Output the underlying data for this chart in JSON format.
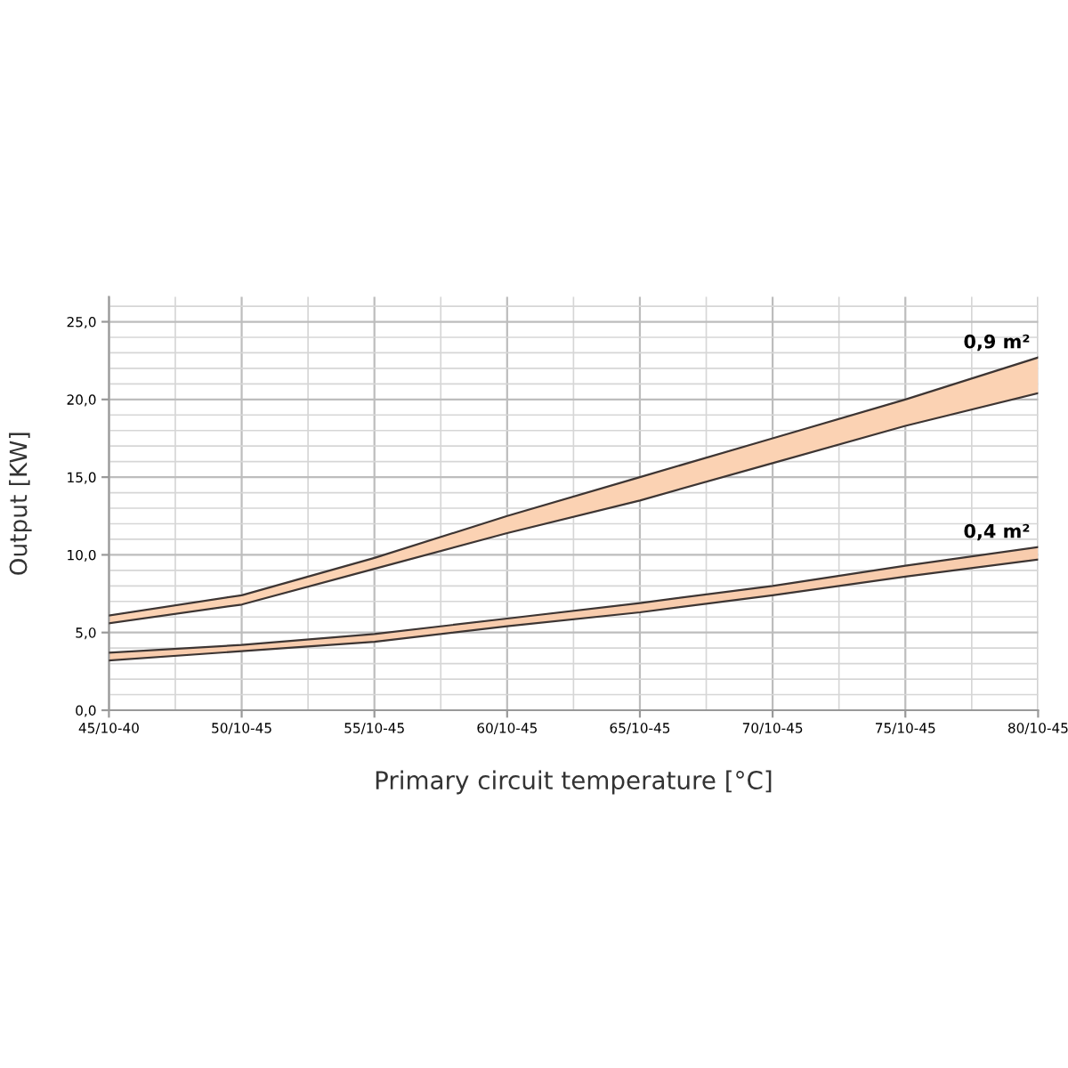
{
  "chart_data": {
    "type": "line",
    "xlabel": "Primary circuit temperature [°C]",
    "ylabel": "Output [KW]",
    "categories": [
      "45/10-40",
      "50/10-45",
      "55/10-45",
      "60/10-45",
      "65/10-45",
      "70/10-45",
      "75/10-45",
      "80/10-45"
    ],
    "series": [
      {
        "name": "0,9 m²",
        "color": "#3d3533",
        "values": [
          6.1,
          7.4,
          9.8,
          12.5,
          15.0,
          17.5,
          20.0,
          22.7
        ],
        "lower": [
          5.6,
          6.8,
          9.1,
          11.4,
          13.5,
          15.9,
          18.3,
          20.4
        ],
        "upper": [
          6.1,
          7.4,
          9.8,
          12.5,
          15.0,
          17.5,
          20.0,
          22.7
        ]
      },
      {
        "color": "#3d3533",
        "values": [
          5.6,
          6.8,
          9.1,
          11.4,
          13.5,
          15.9,
          18.3,
          20.4
        ]
      },
      {
        "name": "0,4 m²",
        "color": "#3d3533",
        "values": [
          3.7,
          4.2,
          4.9,
          5.9,
          6.9,
          8.0,
          9.3,
          10.5
        ],
        "lower": [
          3.2,
          3.8,
          4.4,
          5.4,
          6.3,
          7.4,
          8.6,
          9.7
        ],
        "upper": [
          3.7,
          4.2,
          4.9,
          5.9,
          6.9,
          8.0,
          9.3,
          10.5
        ]
      },
      {
        "color": "#3d3533",
        "values": [
          3.2,
          3.8,
          4.4,
          5.4,
          6.3,
          7.4,
          8.6,
          9.7
        ]
      }
    ],
    "ylim": [
      0,
      26.6
    ],
    "yticks": [
      {
        "value": 0,
        "label": "0,0"
      },
      {
        "value": 1,
        "label": null
      },
      {
        "value": 2,
        "label": null
      },
      {
        "value": 3,
        "label": null
      },
      {
        "value": 4,
        "label": null
      },
      {
        "value": 5,
        "label": "5,0"
      },
      {
        "value": 6,
        "label": null
      },
      {
        "value": 7,
        "label": null
      },
      {
        "value": 8,
        "label": null
      },
      {
        "value": 9,
        "label": null
      },
      {
        "value": 10,
        "label": "10,0"
      },
      {
        "value": 11,
        "label": null
      },
      {
        "value": 12,
        "label": null
      },
      {
        "value": 13,
        "label": null
      },
      {
        "value": 14,
        "label": null
      },
      {
        "value": 15,
        "label": "15,0"
      },
      {
        "value": 16,
        "label": null
      },
      {
        "value": 17,
        "label": null
      },
      {
        "value": 18,
        "label": null
      },
      {
        "value": 19,
        "label": null
      },
      {
        "value": 20,
        "label": "20,0"
      },
      {
        "value": 21,
        "label": null
      },
      {
        "value": 22,
        "label": null
      },
      {
        "value": 23,
        "label": null
      },
      {
        "value": 24,
        "label": null
      },
      {
        "value": 25,
        "label": "25,0"
      },
      {
        "value": 26,
        "label": null
      }
    ],
    "grid": true
  }
}
